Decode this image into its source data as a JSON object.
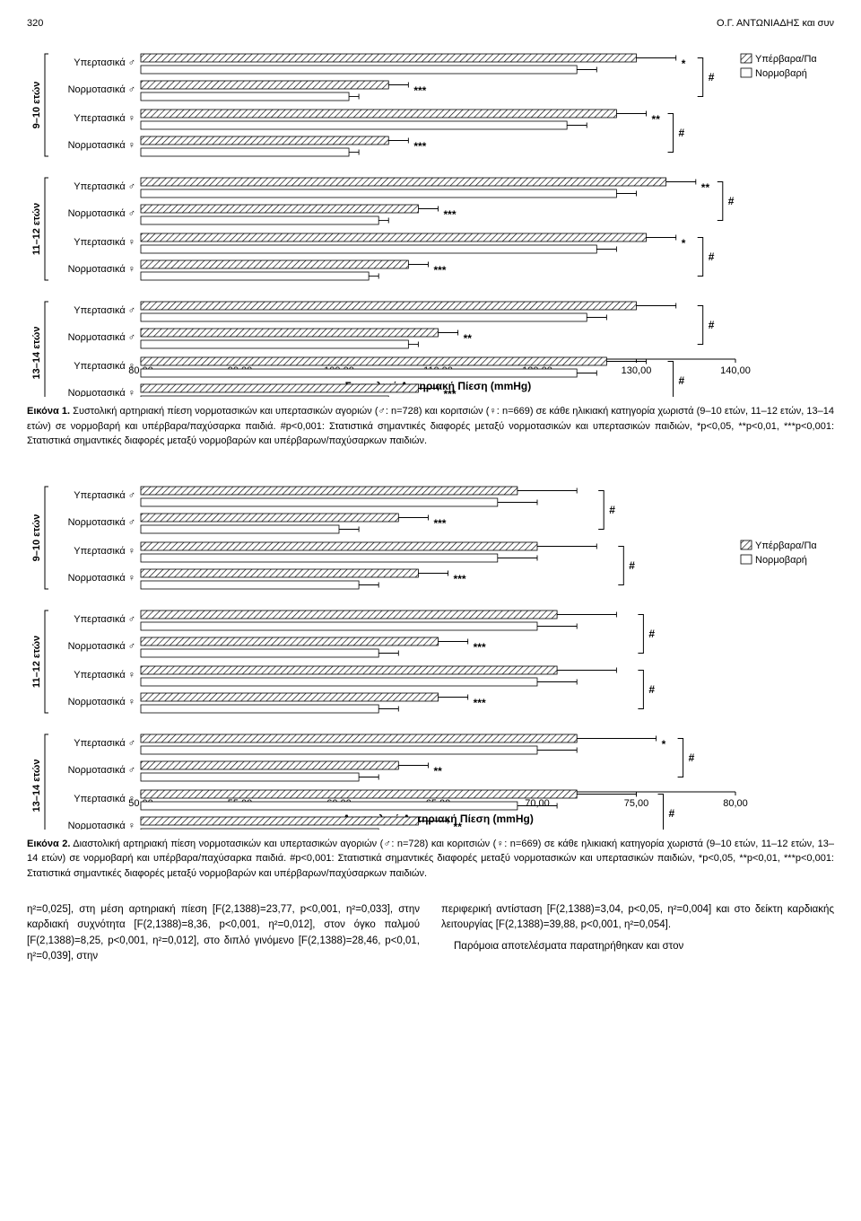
{
  "header": {
    "page_number": "320",
    "running_title": "Ο.Γ. ΑΝΤΩΝΙΑΔΗΣ και συν"
  },
  "legend": {
    "hatched_label": "Υπέρβαρα/Παχύσαρκα",
    "plain_label": "Νορμοβαρή"
  },
  "figure1": {
    "type": "bar",
    "axis_title": "Συστολική Αρτηριακή Πίεση (mmHg)",
    "xlim": [
      80,
      140
    ],
    "xtick_step": 10,
    "pair_sig": [
      "#",
      "#",
      "#",
      "#",
      "#",
      "#"
    ],
    "ages": [
      "9–10 ετών",
      "11–12 ετών",
      "13–14 ετών"
    ],
    "row_labels": [
      "Υπερτασικά ♂",
      "Νορμοτασικά ♂",
      "Υπερτασικά ♀",
      "Νορμοτασικά ♀"
    ],
    "rows": [
      {
        "hv": 130,
        "herr": 4,
        "pv": 124,
        "perr": 2,
        "sig": "*"
      },
      {
        "hv": 105,
        "herr": 2,
        "pv": 101,
        "perr": 1,
        "sig": "***"
      },
      {
        "hv": 128,
        "herr": 3,
        "pv": 123,
        "perr": 2,
        "sig": "**"
      },
      {
        "hv": 105,
        "herr": 2,
        "pv": 101,
        "perr": 1,
        "sig": "***"
      },
      {
        "hv": 133,
        "herr": 3,
        "pv": 128,
        "perr": 2,
        "sig": "**"
      },
      {
        "hv": 108,
        "herr": 2,
        "pv": 104,
        "perr": 1,
        "sig": "***"
      },
      {
        "hv": 131,
        "herr": 3,
        "pv": 126,
        "perr": 2,
        "sig": "*"
      },
      {
        "hv": 107,
        "herr": 2,
        "pv": 103,
        "perr": 1,
        "sig": "***"
      },
      {
        "hv": 130,
        "herr": 4,
        "pv": 125,
        "perr": 2,
        "sig": ""
      },
      {
        "hv": 110,
        "herr": 2,
        "pv": 107,
        "perr": 1,
        "sig": "**"
      },
      {
        "hv": 127,
        "herr": 4,
        "pv": 124,
        "perr": 2,
        "sig": ""
      },
      {
        "hv": 108,
        "herr": 2,
        "pv": 105,
        "perr": 1,
        "sig": "***"
      }
    ],
    "colors": {
      "bg": "#ffffff",
      "axis": "#000000"
    }
  },
  "caption1": {
    "lead": "Εικόνα 1.",
    "text": " Συστολική αρτηριακή πίεση νορμοτασικών και υπερτασικών αγοριών (♂: n=728) και κοριτσιών (♀: n=669) σε κάθε ηλικιακή κατηγορία χωριστά (9–10 ετών, 11–12 ετών, 13–14 ετών) σε νορμοβαρή και υπέρβαρα/παχύσαρκα παιδιά. #p<0,001: Στατιστικά σημαντικές διαφορές μεταξύ νορμοτασικών και υπερτασικών παιδιών, *p<0,05, **p<0,01, ***p<0,001: Στατιστικά σημαντικές διαφορές μεταξύ νορμοβαρών και υπέρβαρων/παχύσαρκων παιδιών."
  },
  "figure2": {
    "type": "bar",
    "axis_title": "Διαστολική Αρτηριακή Πίεση (mmHg)",
    "xlim": [
      50,
      80
    ],
    "xtick_step": 5,
    "pair_sig": [
      "#",
      "#",
      "#",
      "#",
      "#",
      "#"
    ],
    "ages": [
      "9–10 ετών",
      "11–12 ετών",
      "13–14 ετών"
    ],
    "row_labels": [
      "Υπερτασικά ♂",
      "Νορμοτασικά ♂",
      "Υπερτασικά ♀",
      "Νορμοτασικά ♀"
    ],
    "rows": [
      {
        "hv": 69,
        "herr": 3,
        "pv": 68,
        "perr": 2,
        "sig": ""
      },
      {
        "hv": 63,
        "herr": 1.5,
        "pv": 60,
        "perr": 1,
        "sig": "***"
      },
      {
        "hv": 70,
        "herr": 3,
        "pv": 68,
        "perr": 2,
        "sig": ""
      },
      {
        "hv": 64,
        "herr": 1.5,
        "pv": 61,
        "perr": 1,
        "sig": "***"
      },
      {
        "hv": 71,
        "herr": 3,
        "pv": 70,
        "perr": 2,
        "sig": ""
      },
      {
        "hv": 65,
        "herr": 1.5,
        "pv": 62,
        "perr": 1,
        "sig": "***"
      },
      {
        "hv": 71,
        "herr": 3,
        "pv": 70,
        "perr": 2,
        "sig": ""
      },
      {
        "hv": 65,
        "herr": 1.5,
        "pv": 62,
        "perr": 1,
        "sig": "***"
      },
      {
        "hv": 72,
        "herr": 4,
        "pv": 70,
        "perr": 2,
        "sig": "*"
      },
      {
        "hv": 63,
        "herr": 1.5,
        "pv": 61,
        "perr": 1,
        "sig": "**"
      },
      {
        "hv": 72,
        "herr": 3,
        "pv": 69,
        "perr": 2,
        "sig": ""
      },
      {
        "hv": 64,
        "herr": 1.5,
        "pv": 62,
        "perr": 1,
        "sig": "**"
      }
    ],
    "colors": {
      "bg": "#ffffff",
      "axis": "#000000"
    }
  },
  "caption2": {
    "lead": "Εικόνα 2.",
    "text": " Διαστολική αρτηριακή πίεση νορμοτασικών και υπερτασικών αγοριών (♂: n=728) και κοριτσιών (♀: n=669) σε κάθε ηλικιακή κατηγορία χωριστά (9–10 ετών, 11–12 ετών, 13–14 ετών) σε νορμοβαρή και υπέρβαρα/παχύσαρκα παιδιά. #p<0,001: Στατιστικά σημαντικές διαφορές μεταξύ νορμοτασικών και υπερτασικών παιδιών, *p<0,05, **p<0,01, ***p<0,001: Στατιστικά σημαντικές διαφορές μεταξύ νορμοβαρών και υπέρβαρων/παχύσαρκων παιδιών."
  },
  "body": {
    "left": "η²=0,025], στη μέση αρτηριακή πίεση [F(2,1388)=23,77, p<0,001, η²=0,033], στην καρδιακή συχνότητα [F(2,1388)=8,36, p<0,001, η²=0,012], στον όγκο παλμού [F(2,1388)=8,25, p<0,001, η²=0,012], στο διπλό γινόμενο [F(2,1388)=28,46, p<0,01, η²=0,039], στην",
    "right": "περιφερική αντίσταση [F(2,1388)=3,04, p<0,05, η²=0,004] και στο δείκτη καρδιακής λειτουργίας [F(2,1388)=39,88, p<0,001, η²=0,054].",
    "right_last": "Παρόμοια αποτελέσματα παρατηρήθηκαν και στον"
  }
}
